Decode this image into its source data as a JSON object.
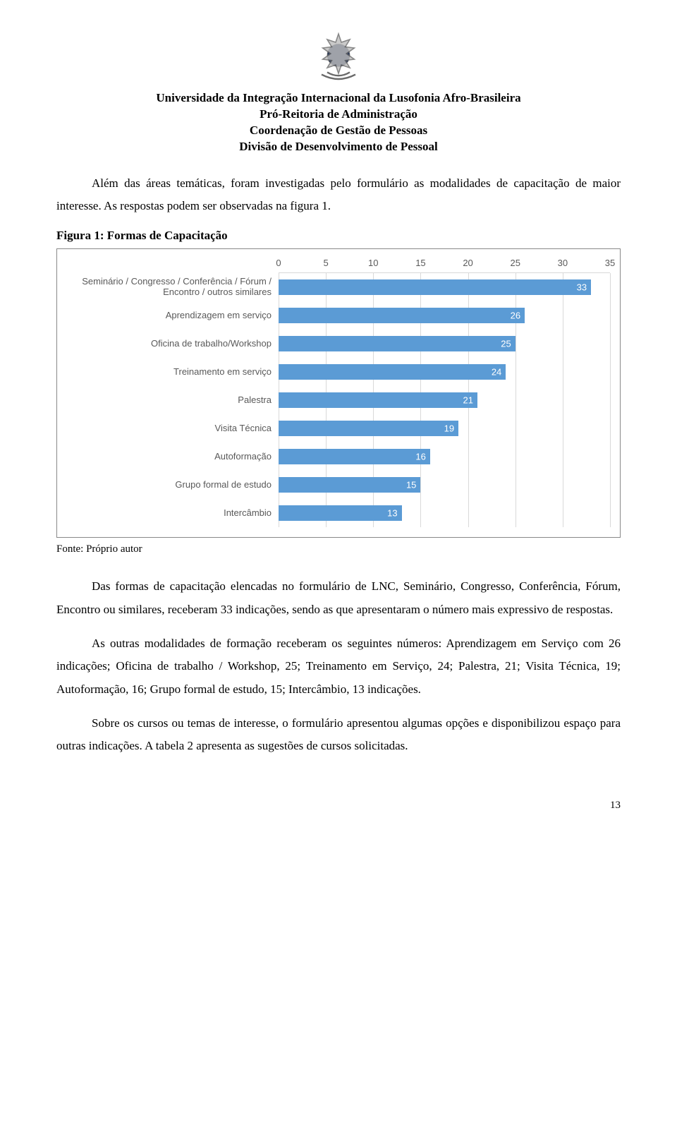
{
  "header": {
    "line1": "Universidade da Integração Internacional da Lusofonia Afro-Brasileira",
    "line2": "Pró-Reitoria de Administração",
    "line3": "Coordenação de Gestão de Pessoas",
    "line4": "Divisão de Desenvolvimento de Pessoal"
  },
  "paragraphs": {
    "p1": "Além das áreas temáticas, foram investigadas pelo formulário as modalidades de capacitação de maior interesse. As respostas podem ser observadas na figura 1.",
    "fig_title": "Figura 1: Formas de Capacitação",
    "fonte": "Fonte: Próprio autor",
    "p2": "Das formas de capacitação elencadas no formulário de LNC, Seminário, Congresso, Conferência, Fórum, Encontro ou similares, receberam 33 indicações, sendo as que apresentaram o número mais expressivo de respostas.",
    "p3": "As outras modalidades de formação receberam os seguintes números: Aprendizagem em Serviço com 26 indicações; Oficina de trabalho / Workshop, 25; Treinamento em Serviço, 24; Palestra, 21; Visita Técnica, 19; Autoformação, 16; Grupo formal de estudo, 15; Intercâmbio, 13 indicações.",
    "p4": "Sobre os cursos ou temas de interesse, o formulário apresentou algumas opções e disponibilizou espaço para outras indicações. A tabela 2 apresenta as sugestões de cursos solicitadas."
  },
  "chart": {
    "type": "bar-horizontal",
    "xmin": 0,
    "xmax": 35,
    "xtick_step": 5,
    "bar_color": "#5b9bd5",
    "value_color": "#ffffff",
    "grid_color": "#d9d9d9",
    "label_color": "#595959",
    "label_fontsize": 13,
    "series": [
      {
        "label": "Seminário / Congresso / Conferência / Fórum / Encontro / outros similares",
        "value": 33
      },
      {
        "label": "Aprendizagem em serviço",
        "value": 26
      },
      {
        "label": "Oficina de trabalho/Workshop",
        "value": 25
      },
      {
        "label": "Treinamento em serviço",
        "value": 24
      },
      {
        "label": "Palestra",
        "value": 21
      },
      {
        "label": "Visita Técnica",
        "value": 19
      },
      {
        "label": "Autoformação",
        "value": 16
      },
      {
        "label": "Grupo formal de estudo",
        "value": 15
      },
      {
        "label": "Intercâmbio",
        "value": 13
      }
    ]
  },
  "page_number": "13"
}
